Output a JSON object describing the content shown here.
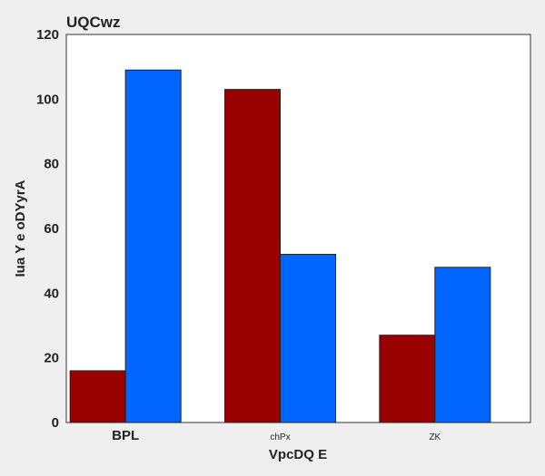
{
  "chart_data": {
    "type": "bar",
    "title": "UQCwz",
    "xlabel": "VpcDQ E",
    "ylabel": "Iua Y e oDYyrA",
    "categories": [
      "BPL",
      "chPx",
      "ZK"
    ],
    "series": [
      {
        "values": [
          16,
          103,
          27
        ],
        "color": "#990000"
      },
      {
        "values": [
          109,
          52,
          48
        ],
        "color": "#0066ff"
      }
    ],
    "ylim": [
      0,
      120
    ],
    "yticks": [
      0,
      20,
      40,
      60,
      80,
      100,
      120
    ],
    "grid": false,
    "legend": "none"
  }
}
